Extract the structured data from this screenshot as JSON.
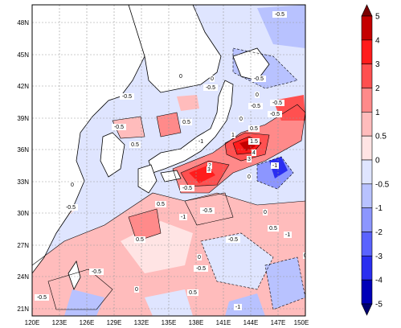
{
  "map": {
    "lat_ticks": [
      "48N",
      "45N",
      "42N",
      "39N",
      "36N",
      "33N",
      "30N",
      "27N",
      "24N",
      "21N"
    ],
    "lon_ticks": [
      "120E",
      "123E",
      "126E",
      "129E",
      "132E",
      "135E",
      "138E",
      "141E",
      "144E",
      "147E",
      "150E"
    ]
  },
  "colorbar": {
    "labels": [
      "5",
      "4",
      "3",
      "2",
      "1",
      "0.5",
      "0",
      "-0.5",
      "-1",
      "-2",
      "-3",
      "-4",
      "-5"
    ],
    "colors": [
      "#7a0000",
      "#c40000",
      "#ff1c1c",
      "#ff5050",
      "#ff8a8a",
      "#ffbcbc",
      "#ffe4e4",
      "#dfe5ff",
      "#b8c2ff",
      "#8c96ff",
      "#5a63ff",
      "#2a2ef0",
      "#0000b8",
      "#000070"
    ]
  },
  "contour_labels": [
    "-0.5",
    "0",
    "-0.5",
    "-0.5",
    "-0.5",
    "-0.5",
    "-0.5",
    "0",
    "0",
    "-0.5",
    "0.5",
    "0.5",
    "-1",
    "-0.5",
    "0",
    "0.5",
    "1",
    "1.5",
    "2",
    "3",
    "4",
    "3",
    "-0.5",
    "-1",
    "0",
    "0",
    "-0.5",
    "0.5",
    "-1",
    "-0.5",
    "0.5",
    "-0.5",
    "0",
    "0.5",
    "-1",
    "-0.5",
    "0",
    "0",
    "-0.5",
    "0.5",
    "-1",
    "0",
    "-0.5"
  ],
  "colors": {
    "land": "#ffffff",
    "coast": "#000000",
    "grid": "#9a9a9a"
  }
}
